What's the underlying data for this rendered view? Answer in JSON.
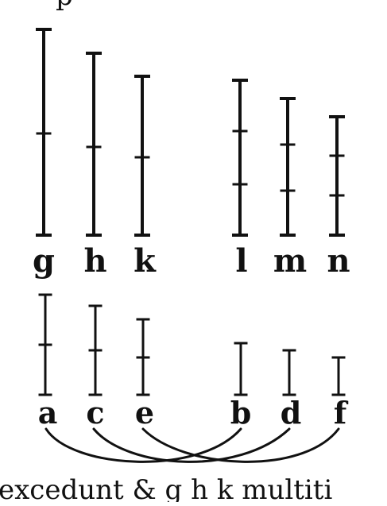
{
  "figure": {
    "top_caption_fragment": "p",
    "bottom_caption": "excedunt & g h k multiti",
    "upper_rods": [
      {
        "label": "g",
        "parts": 2
      },
      {
        "label": "h",
        "parts": 2
      },
      {
        "label": "k",
        "parts": 2
      },
      {
        "label": "l",
        "parts": 3
      },
      {
        "label": "m",
        "parts": 3
      },
      {
        "label": "n",
        "parts": 3
      }
    ],
    "lower_rods": [
      {
        "label": "a",
        "parts": 2
      },
      {
        "label": "c",
        "parts": 2
      },
      {
        "label": "e",
        "parts": 2
      },
      {
        "label": "b",
        "parts": 1
      },
      {
        "label": "d",
        "parts": 1
      },
      {
        "label": "f",
        "parts": 1
      }
    ],
    "connections": [
      {
        "from": "a",
        "to": "b"
      },
      {
        "from": "c",
        "to": "d"
      },
      {
        "from": "e",
        "to": "f"
      }
    ]
  }
}
